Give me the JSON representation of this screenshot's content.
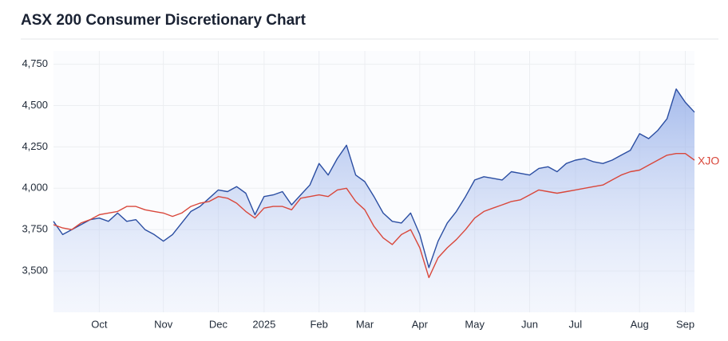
{
  "chart_data": {
    "type": "line",
    "title": "ASX 200 Consumer Discretionary Chart",
    "categories": [
      null,
      null,
      null,
      null,
      null,
      "Oct",
      null,
      null,
      null,
      null,
      null,
      null,
      "Nov",
      null,
      null,
      null,
      null,
      null,
      "Dec",
      null,
      null,
      null,
      null,
      "2025",
      null,
      null,
      null,
      null,
      null,
      "Feb",
      null,
      null,
      null,
      null,
      "Mar",
      null,
      null,
      null,
      null,
      null,
      "Apr",
      null,
      null,
      null,
      null,
      null,
      "May",
      null,
      null,
      null,
      null,
      null,
      "Jun",
      null,
      null,
      null,
      null,
      "Jul",
      null,
      null,
      null,
      null,
      null,
      null,
      "Aug",
      null,
      null,
      null,
      null,
      "Sep",
      null
    ],
    "series": [
      {
        "color": "#2b4ea2",
        "area": true,
        "values": [
          3800,
          3720,
          3750,
          3780,
          3810,
          3820,
          3800,
          3850,
          3800,
          3810,
          3750,
          3720,
          3680,
          3720,
          3790,
          3860,
          3890,
          3940,
          3990,
          3980,
          4010,
          3970,
          3840,
          3950,
          3960,
          3980,
          3900,
          3960,
          4020,
          4150,
          4080,
          4180,
          4260,
          4080,
          4040,
          3950,
          3850,
          3800,
          3790,
          3850,
          3720,
          3520,
          3680,
          3790,
          3860,
          3950,
          4050,
          4070,
          4060,
          4050,
          4100,
          4090,
          4080,
          4120,
          4130,
          4100,
          4150,
          4170,
          4180,
          4160,
          4150,
          4170,
          4200,
          4230,
          4330,
          4300,
          4350,
          4420,
          4600,
          4520,
          4460
        ]
      },
      {
        "name": "XJO",
        "color": "#d9473b",
        "values": [
          3780,
          3760,
          3750,
          3790,
          3810,
          3840,
          3850,
          3860,
          3890,
          3890,
          3870,
          3860,
          3850,
          3830,
          3850,
          3890,
          3910,
          3920,
          3950,
          3940,
          3910,
          3860,
          3820,
          3880,
          3890,
          3890,
          3870,
          3940,
          3950,
          3960,
          3950,
          3990,
          4000,
          3920,
          3870,
          3770,
          3700,
          3660,
          3720,
          3750,
          3640,
          3460,
          3580,
          3640,
          3690,
          3750,
          3820,
          3860,
          3880,
          3900,
          3920,
          3930,
          3960,
          3990,
          3980,
          3970,
          3980,
          3990,
          4000,
          4010,
          4020,
          4050,
          4080,
          4100,
          4110,
          4140,
          4170,
          4200,
          4210,
          4210,
          4170
        ]
      }
    ],
    "ylim": [
      3250,
      4830
    ],
    "yticks": [
      {
        "value": 3500,
        "label": "3,500"
      },
      {
        "value": 3750,
        "label": "3,750"
      },
      {
        "value": 4000,
        "label": "4,000"
      },
      {
        "value": 4250,
        "label": "4,250"
      },
      {
        "value": 4500,
        "label": "4,500"
      },
      {
        "value": 4750,
        "label": "4,750"
      }
    ],
    "grid": true
  }
}
